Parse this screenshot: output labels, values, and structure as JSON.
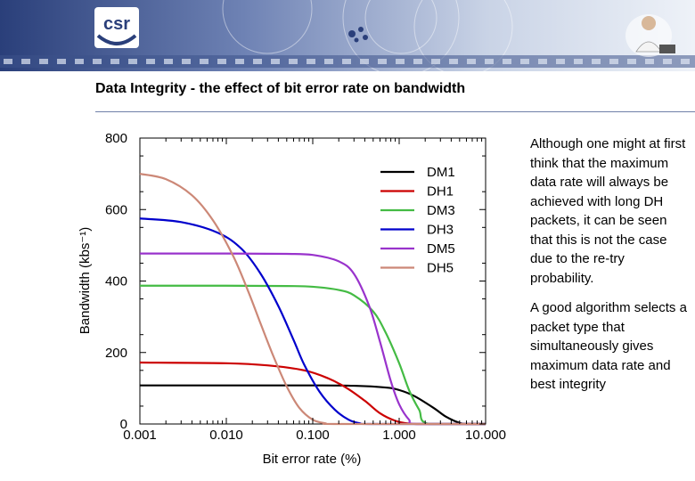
{
  "slide_title": "Data Integrity - the effect of bit error rate on bandwidth",
  "logo_text": "csr",
  "notes": [
    "Although one might at first think that the maximum data rate will always be achieved with long DH packets, it can be seen that this is not the case due to the re-try probability.",
    "A good algorithm selects a packet type that simultaneously gives maximum data rate and best integrity"
  ],
  "chart_data": {
    "type": "line",
    "title": "",
    "xlabel": "Bit error rate (%)",
    "ylabel": "Bandwidth (kbs⁻¹)",
    "xscale": "log",
    "xlim": [
      0.001,
      10
    ],
    "ylim": [
      0,
      800
    ],
    "x_ticks": [
      0.001,
      0.01,
      0.1,
      1,
      10
    ],
    "x_tick_labels": [
      "0.001",
      "0.010",
      "0.100",
      "1.000",
      "10.000"
    ],
    "y_ticks": [
      0,
      200,
      400,
      600,
      800
    ],
    "y_tick_labels": [
      "0",
      "200",
      "400",
      "600",
      "800"
    ],
    "grid": false,
    "legend_position": "top-right",
    "series": [
      {
        "name": "DM1",
        "color": "#000000",
        "x": [
          0.001,
          0.01,
          0.1,
          0.3,
          0.7,
          1.0,
          1.5,
          2.5,
          3.5,
          5.0,
          6.0,
          10.0
        ],
        "values": [
          108,
          108,
          108,
          107,
          102,
          95,
          78,
          45,
          20,
          3,
          0,
          0
        ]
      },
      {
        "name": "DH1",
        "color": "#cc0000",
        "x": [
          0.001,
          0.01,
          0.03,
          0.08,
          0.15,
          0.25,
          0.4,
          0.6,
          0.9,
          1.3,
          1.8,
          10.0
        ],
        "values": [
          172,
          170,
          164,
          150,
          128,
          100,
          65,
          30,
          9,
          1,
          0,
          0
        ]
      },
      {
        "name": "DM3",
        "color": "#44bb44",
        "x": [
          0.001,
          0.01,
          0.05,
          0.1,
          0.2,
          0.3,
          0.5,
          0.7,
          1.0,
          1.3,
          1.7,
          2.2,
          10.0
        ],
        "values": [
          387,
          387,
          386,
          384,
          375,
          360,
          315,
          255,
          170,
          95,
          40,
          0,
          0
        ]
      },
      {
        "name": "DH3",
        "color": "#0000cc",
        "x": [
          0.001,
          0.003,
          0.008,
          0.015,
          0.025,
          0.04,
          0.06,
          0.08,
          0.12,
          0.18,
          0.26,
          0.35,
          0.5,
          10.0
        ],
        "values": [
          575,
          565,
          535,
          490,
          420,
          330,
          235,
          165,
          90,
          40,
          12,
          2,
          0,
          0
        ]
      },
      {
        "name": "DM5",
        "color": "#9933cc",
        "x": [
          0.001,
          0.01,
          0.05,
          0.1,
          0.2,
          0.3,
          0.45,
          0.6,
          0.8,
          1.0,
          1.3,
          1.6,
          10.0
        ],
        "values": [
          477,
          477,
          476,
          473,
          455,
          420,
          330,
          230,
          120,
          55,
          12,
          0,
          0
        ]
      },
      {
        "name": "DH5",
        "color": "#cc8877",
        "x": [
          0.001,
          0.002,
          0.004,
          0.007,
          0.012,
          0.018,
          0.025,
          0.035,
          0.05,
          0.07,
          0.1,
          0.14,
          0.2,
          10.0
        ],
        "values": [
          700,
          685,
          640,
          570,
          470,
          370,
          280,
          190,
          105,
          45,
          12,
          2,
          0,
          0
        ]
      }
    ]
  }
}
